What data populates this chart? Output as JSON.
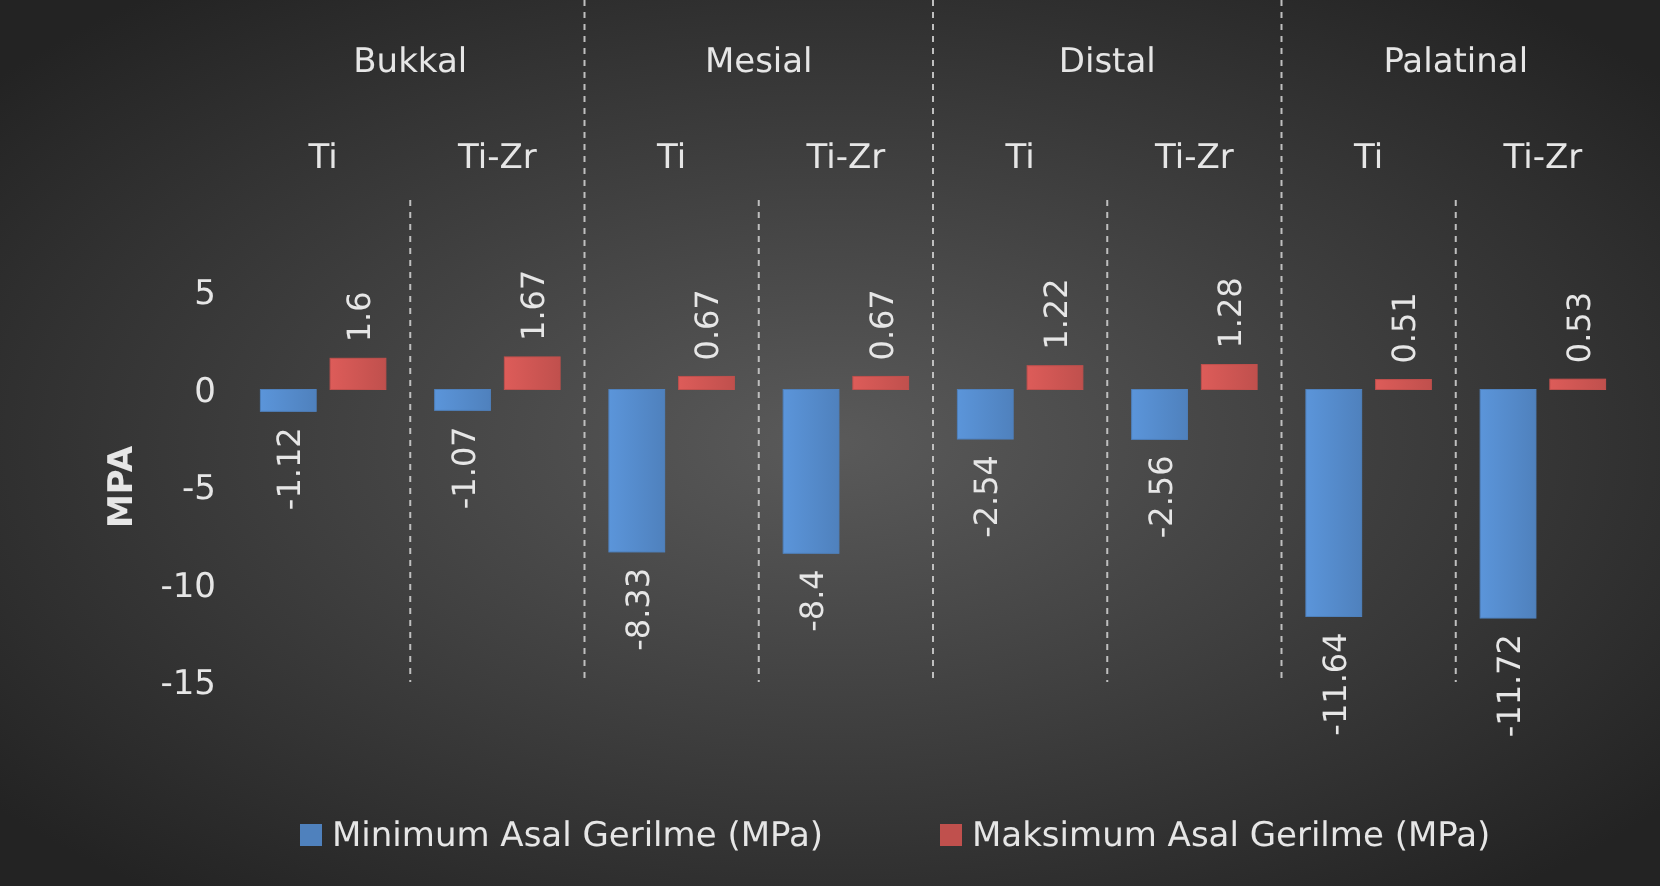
{
  "chart_data": {
    "type": "bar",
    "ylabel": "MPA",
    "categories": [
      "Ti",
      "Ti-Zr",
      "Ti",
      "Ti-Zr",
      "Ti",
      "Ti-Zr",
      "Ti",
      "Ti-Zr"
    ],
    "annotations": [
      "Bukkal",
      "Mesial",
      "Distal",
      "Palatinal"
    ],
    "series": [
      {
        "name": "Minimum Asal Gerilme (MPa)",
        "color": "#4f81bd",
        "values": [
          -1.12,
          -1.07,
          -8.33,
          -8.4,
          -2.54,
          -2.56,
          -11.64,
          -11.72
        ]
      },
      {
        "name": "Maksimum Asal Gerilme (MPa)",
        "color": "#c0504d",
        "values": [
          1.6,
          1.67,
          0.67,
          0.67,
          1.22,
          1.28,
          0.51,
          0.53
        ]
      }
    ],
    "ylim": [
      -15,
      5
    ],
    "yticks": [
      5,
      0,
      -5,
      -10,
      -15
    ],
    "data_labels": true,
    "grid": false,
    "legend": "bottom"
  }
}
